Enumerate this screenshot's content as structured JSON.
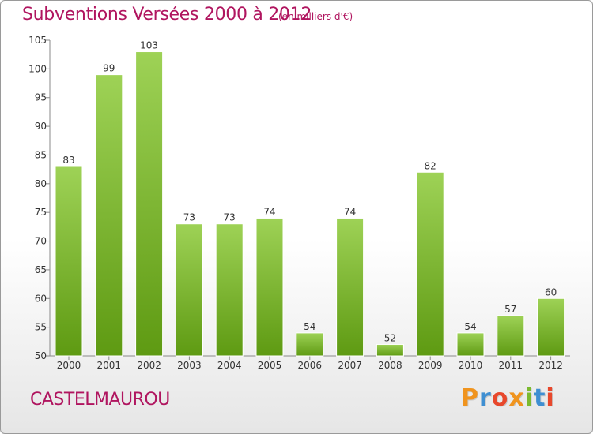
{
  "title": "Subventions Versées 2000 à 2012",
  "unit": "(en milliers d'€)",
  "commune": "CASTELMAUROU",
  "logo": {
    "letters": [
      "P",
      "r",
      "o",
      "x",
      "i",
      "t",
      "i"
    ],
    "colors": [
      "#f0941e",
      "#3f8fd2",
      "#e8482c",
      "#f0941e",
      "#7cba2f",
      "#3f8fd2",
      "#e8482c"
    ]
  },
  "colors": {
    "title": "#b0155f",
    "bar_top": "#9ed256",
    "bar_bottom": "#5e9a12"
  },
  "chart_data": {
    "type": "bar",
    "title": "Subventions Versées 2000 à 2012",
    "categories": [
      "2000",
      "2001",
      "2002",
      "2003",
      "2004",
      "2005",
      "2006",
      "2007",
      "2008",
      "2009",
      "2010",
      "2011",
      "2012"
    ],
    "values": [
      83,
      99,
      103,
      73,
      73,
      74,
      54,
      74,
      52,
      82,
      54,
      57,
      60
    ],
    "ylim": [
      50,
      105
    ],
    "yticks": [
      50,
      55,
      60,
      65,
      70,
      75,
      80,
      85,
      90,
      95,
      100,
      105
    ],
    "grid": false,
    "legend": "none"
  }
}
